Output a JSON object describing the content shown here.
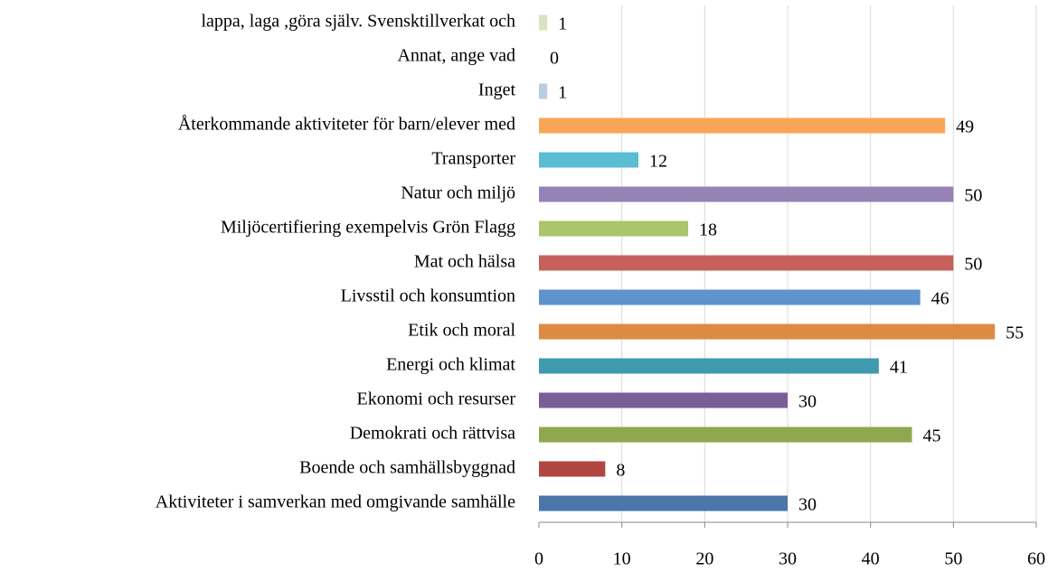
{
  "chart_data": {
    "type": "bar",
    "orientation": "horizontal",
    "categories": [
      "lappa, laga ,göra själv. Svensktillverkat och",
      "Annat, ange vad",
      "Inget",
      "Återkommande aktiviteter för barn/elever med",
      "Transporter",
      "Natur och miljö",
      "Miljöcertifiering exempelvis Grön Flagg",
      "Mat och hälsa",
      "Livsstil och konsumtion",
      "Etik och moral",
      "Energi och klimat",
      "Ekonomi och resurser",
      "Demokrati och rättvisa",
      "Boende och samhällsbyggnad",
      "Aktiviteter i samverkan med omgivande samhälle"
    ],
    "values": [
      1,
      0,
      1,
      49,
      12,
      50,
      18,
      50,
      46,
      55,
      41,
      30,
      45,
      8,
      30
    ],
    "colors": [
      "#d7e4bd",
      "#e6b9b8",
      "#b9cde5",
      "#f9a557",
      "#5bbcd4",
      "#9782b5",
      "#a9c66a",
      "#c8605c",
      "#5e93cb",
      "#dd8a43",
      "#3f9aae",
      "#7a5f96",
      "#8ea84f",
      "#b04541",
      "#4a76a8"
    ],
    "xlim": [
      0,
      60
    ],
    "xticks": [
      0,
      10,
      20,
      30,
      40,
      50,
      60
    ],
    "grid": true
  }
}
